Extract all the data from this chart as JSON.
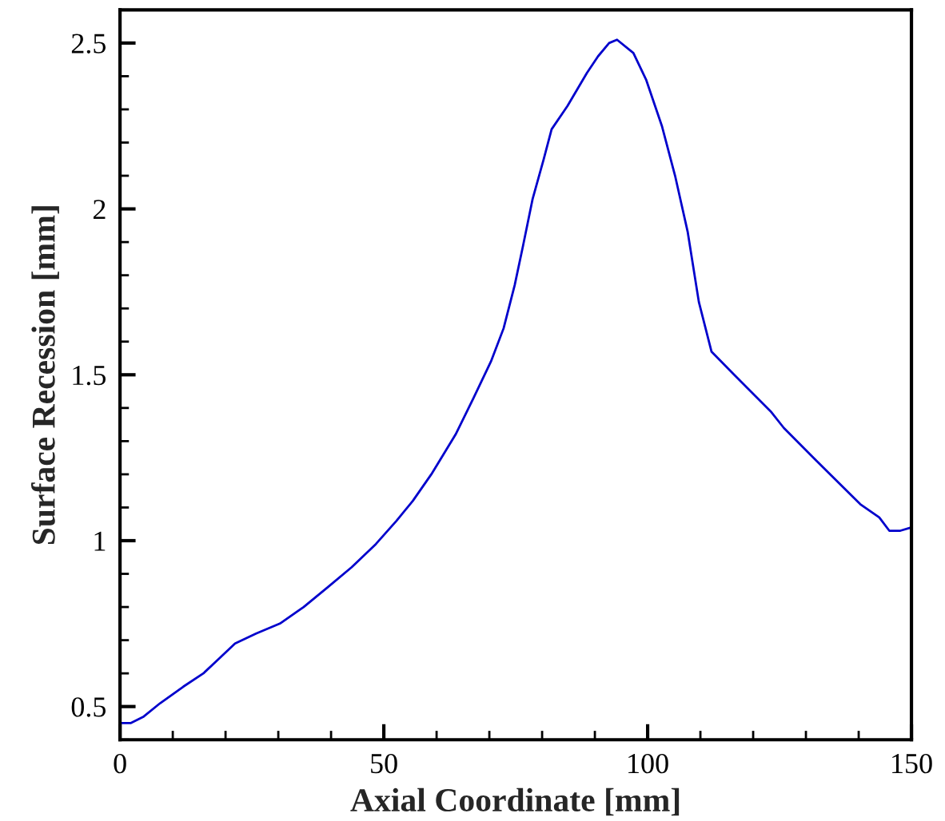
{
  "chart_data": {
    "type": "line",
    "xlabel": "Axial Coordinate [mm]",
    "ylabel": "Surface Recession [mm]",
    "xlim": [
      0,
      150
    ],
    "ylim": [
      0.4,
      2.6
    ],
    "xticks": [
      0,
      50,
      100,
      150
    ],
    "yticks": [
      0.5,
      1,
      1.5,
      2,
      2.5
    ],
    "grid": false,
    "legend": false,
    "marker": "none",
    "line_style": "solid",
    "x": [
      0,
      2,
      4.5,
      7.6,
      12,
      15.8,
      18.8,
      21.8,
      25.8,
      30.3,
      34.8,
      39.4,
      43.9,
      48.5,
      52.4,
      55.5,
      59,
      63.6,
      67,
      70.3,
      72.7,
      74.8,
      76.4,
      78.2,
      80.3,
      81.8,
      84.8,
      88.5,
      90.6,
      92.7,
      94.2,
      97.3,
      99.7,
      102.7,
      105.2,
      107.6,
      109.7,
      112.1,
      116.4,
      123.3,
      125.8,
      133.3,
      140.3,
      143.9,
      145.8,
      147.9,
      150
    ],
    "series": [
      {
        "color": "#0000cc",
        "values": [
          0.45,
          0.45,
          0.47,
          0.51,
          0.56,
          0.6,
          0.645,
          0.69,
          0.72,
          0.75,
          0.8,
          0.86,
          0.92,
          0.99,
          1.06,
          1.12,
          1.2,
          1.32,
          1.43,
          1.54,
          1.64,
          1.77,
          1.89,
          2.03,
          2.15,
          2.24,
          2.31,
          2.41,
          2.46,
          2.5,
          2.51,
          2.47,
          2.39,
          2.25,
          2.1,
          1.93,
          1.72,
          1.57,
          1.5,
          1.39,
          1.34,
          1.22,
          1.11,
          1.07,
          1.03,
          1.03,
          1.04
        ]
      }
    ]
  }
}
